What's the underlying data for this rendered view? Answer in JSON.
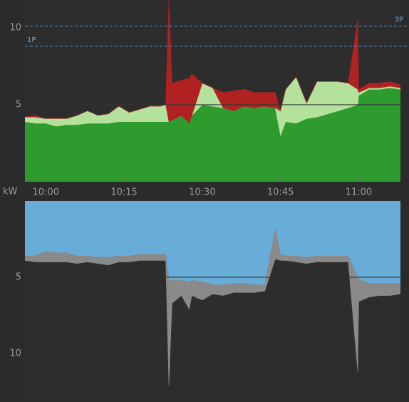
{
  "chart_data": [
    {
      "type": "stacked-area",
      "x": [
        596,
        598,
        600,
        602,
        604,
        606,
        608,
        610,
        612,
        614,
        616,
        618,
        620,
        622,
        623,
        623.6,
        624.2,
        626,
        627.5,
        628,
        630,
        632,
        634,
        636,
        638,
        640,
        642,
        644,
        645,
        646,
        648,
        650,
        652,
        654,
        656,
        658,
        659.8,
        660,
        662,
        664,
        666,
        668
      ],
      "series": [
        {
          "color": "#2e9b2e",
          "values": [
            3.9,
            3.8,
            3.8,
            3.6,
            3.7,
            3.7,
            3.8,
            3.8,
            3.8,
            3.9,
            3.9,
            3.9,
            3.9,
            3.9,
            3.9,
            3.9,
            4.0,
            4.3,
            3.8,
            4.3,
            5.0,
            4.9,
            4.8,
            4.6,
            4.9,
            4.8,
            4.9,
            4.8,
            3.0,
            3.9,
            3.8,
            4.1,
            4.2,
            4.4,
            4.6,
            4.8,
            5.0,
            5.6,
            6.0,
            6.0,
            6.1,
            6.0
          ]
        },
        {
          "color": "#b4e29c",
          "values": [
            0.3,
            0.4,
            0.3,
            0.5,
            0.4,
            0.6,
            0.8,
            0.5,
            0.6,
            1.0,
            0.6,
            0.8,
            1.0,
            1.0,
            1.1,
            0,
            0,
            0,
            0,
            0,
            1.4,
            1.2,
            0,
            0,
            0,
            0,
            0,
            0,
            1.6,
            2.1,
            3.0,
            1.0,
            2.3,
            2.1,
            1.9,
            1.6,
            1.0,
            0.2,
            0.1,
            0.1,
            0.1,
            0.1
          ]
        },
        {
          "color": "#b02222",
          "values": [
            0,
            0.1,
            0,
            0,
            0,
            0,
            0,
            0,
            0,
            0,
            0,
            0,
            0,
            0,
            0,
            7.9,
            2.4,
            2.3,
            2.9,
            2.7,
            0,
            0,
            1.0,
            1.3,
            1.1,
            1.0,
            0.9,
            1.0,
            0,
            0,
            0,
            0,
            0,
            0,
            0,
            0,
            4.5,
            0.2,
            0.3,
            0.3,
            0.3,
            0.2
          ]
        }
      ],
      "xlim": [
        596,
        668
      ],
      "xticks": [
        {
          "value": 600,
          "label": "10:00"
        },
        {
          "value": 615,
          "label": "10:15"
        },
        {
          "value": 630,
          "label": "10:30"
        },
        {
          "value": 645,
          "label": "10:45"
        },
        {
          "value": 660,
          "label": "11:00"
        }
      ],
      "ylim": [
        0,
        11.8
      ],
      "yticks": [
        5,
        10
      ],
      "hline": 5,
      "reference_lines": [
        {
          "value": 10.1,
          "label": "3P"
        },
        {
          "value": 8.8,
          "label": "1P"
        }
      ],
      "reference_color": "#4f93c9"
    },
    {
      "type": "stacked-area",
      "ylabel": "kW",
      "inverted": true,
      "x": [
        596,
        598,
        600,
        602,
        604,
        606,
        608,
        610,
        612,
        614,
        616,
        618,
        620,
        622,
        623,
        623.6,
        624.2,
        626,
        627.5,
        628,
        630,
        632,
        634,
        636,
        638,
        640,
        642,
        644,
        645,
        646,
        648,
        650,
        652,
        654,
        656,
        658,
        659.8,
        660,
        662,
        664,
        666,
        668
      ],
      "series": [
        {
          "color": "#68acd8",
          "values": [
            3.6,
            3.6,
            3.3,
            3.4,
            3.4,
            3.6,
            3.6,
            3.7,
            3.7,
            3.6,
            3.6,
            3.5,
            3.5,
            3.5,
            3.5,
            5.2,
            5.2,
            5.2,
            5.3,
            5.2,
            5.3,
            5.5,
            5.5,
            5.4,
            5.4,
            5.5,
            5.5,
            1.8,
            3.5,
            3.6,
            3.6,
            3.7,
            3.6,
            3.6,
            3.6,
            3.6,
            5.0,
            5.1,
            5.4,
            5.4,
            5.4,
            5.4
          ]
        },
        {
          "color": "#8a8a8a",
          "values": [
            0.3,
            0.4,
            0.7,
            0.6,
            0.6,
            0.5,
            0.4,
            0.4,
            0.5,
            0.4,
            0.4,
            0.4,
            0.4,
            0.4,
            0.4,
            6.9,
            1.5,
            1.0,
            1.8,
            1.0,
            1.2,
            0.6,
            0.7,
            0.6,
            0.6,
            0.5,
            0.4,
            2.0,
            0.4,
            0.3,
            0.4,
            0.4,
            0.4,
            0.4,
            0.4,
            0.4,
            6.2,
            1.5,
            0.9,
            0.8,
            0.8,
            0.7
          ]
        }
      ],
      "xlim": [
        596,
        668
      ],
      "ylim": [
        0,
        13
      ],
      "yticks": [
        5,
        10
      ],
      "hline": 5
    }
  ]
}
